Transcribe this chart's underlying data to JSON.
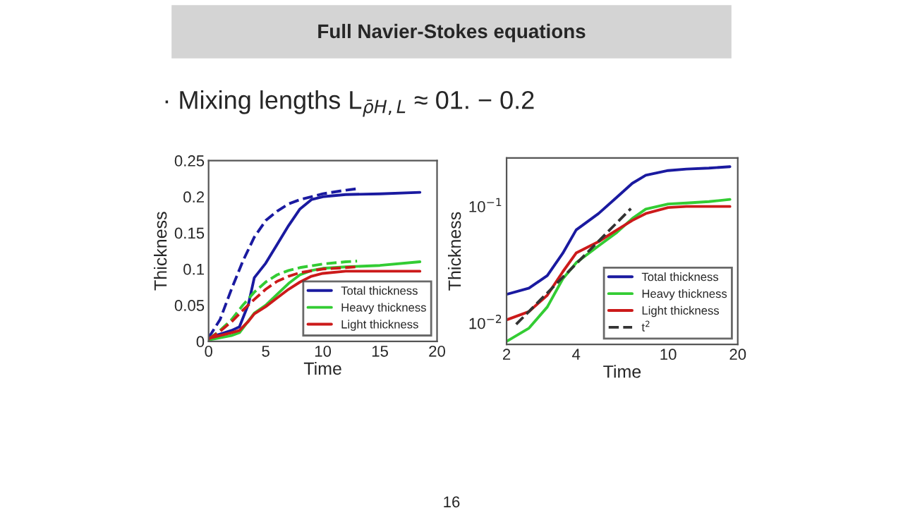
{
  "chart_data": [
    {
      "type": "line",
      "title": "Full Navier-Stokes equations",
      "xlabel": "Time",
      "ylabel": "Thickness",
      "annotations": [
        "· Mixing lengths L$_{ρ̄H,L}$ ≈ 01. − 0.2",
        "16"
      ],
      "xlim": [
        0,
        20
      ],
      "xticks": [
        0,
        5,
        10,
        15,
        20
      ],
      "ylim": [
        0,
        0.25
      ],
      "yticks": [
        0,
        0.05,
        0.1,
        0.15,
        0.2,
        0.25
      ],
      "grid": false,
      "legend": "bottom right",
      "series": [
        {
          "name": "Total thickness",
          "color": "#1a1aa0",
          "line_style": "solid",
          "x": [
            0,
            1,
            2,
            2.7,
            3.5,
            4,
            5,
            6,
            7,
            8,
            9,
            10,
            12,
            15,
            18.5
          ],
          "values": [
            0.005,
            0.01,
            0.015,
            0.02,
            0.052,
            0.088,
            0.108,
            0.134,
            0.16,
            0.183,
            0.196,
            0.2,
            0.203,
            0.204,
            0.206
          ]
        },
        {
          "name": "Heavy thickness",
          "color": "#33cc33",
          "line_style": "solid",
          "x": [
            0,
            2,
            2.7,
            4,
            5,
            6,
            7,
            8,
            9,
            10,
            12,
            15,
            18.5
          ],
          "values": [
            0.002,
            0.008,
            0.012,
            0.039,
            0.05,
            0.065,
            0.08,
            0.092,
            0.098,
            0.101,
            0.103,
            0.105,
            0.11
          ]
        },
        {
          "name": "Light thickness",
          "color": "#cc1a1a",
          "line_style": "solid",
          "x": [
            0,
            1,
            2,
            2.7,
            3.5,
            4,
            5,
            6,
            7,
            8,
            9,
            10,
            12,
            15,
            18.5
          ],
          "values": [
            0.004,
            0.008,
            0.012,
            0.015,
            0.028,
            0.038,
            0.048,
            0.06,
            0.072,
            0.082,
            0.09,
            0.094,
            0.097,
            0.097,
            0.097
          ]
        },
        {
          "color": "#1a1aa0",
          "line_style": "dashed",
          "x": [
            0,
            1,
            2,
            3,
            4,
            5,
            6,
            7,
            8,
            10,
            12,
            13
          ],
          "values": [
            0.005,
            0.03,
            0.072,
            0.111,
            0.144,
            0.167,
            0.18,
            0.19,
            0.196,
            0.204,
            0.209,
            0.211
          ]
        },
        {
          "color": "#33cc33",
          "line_style": "dashed",
          "x": [
            0,
            1,
            2,
            3,
            4,
            5,
            6,
            7,
            8,
            10,
            12,
            13
          ],
          "values": [
            0.003,
            0.015,
            0.03,
            0.05,
            0.068,
            0.082,
            0.092,
            0.098,
            0.102,
            0.107,
            0.11,
            0.111
          ]
        },
        {
          "color": "#cc1a1a",
          "line_style": "dashed",
          "x": [
            0,
            1,
            2,
            3,
            4,
            5,
            6,
            7,
            8,
            10,
            12,
            13
          ],
          "values": [
            0.003,
            0.014,
            0.027,
            0.043,
            0.058,
            0.072,
            0.083,
            0.09,
            0.095,
            0.1,
            0.102,
            0.103
          ]
        }
      ]
    },
    {
      "type": "line",
      "xlabel": "Time",
      "ylabel": "Thickness",
      "log": "xy",
      "xlim": [
        2,
        20
      ],
      "xticks": [
        2,
        4,
        10,
        20
      ],
      "ylim": [
        0.0066,
        0.26
      ],
      "yticks": [
        {
          "value": 0.01,
          "label": "10$^{−2}$"
        },
        {
          "value": 0.1,
          "label": "10$^{−1}$"
        }
      ],
      "grid": false,
      "legend": "bottom right",
      "series": [
        {
          "name": "Total thickness",
          "color": "#1a1aa0",
          "line_style": "solid",
          "x": [
            2,
            2.5,
            3,
            3.5,
            4,
            5,
            6,
            7,
            8,
            10,
            12,
            15,
            18.5
          ],
          "values": [
            0.0177,
            0.02,
            0.0256,
            0.0398,
            0.063,
            0.087,
            0.12,
            0.158,
            0.185,
            0.203,
            0.209,
            0.213,
            0.219
          ]
        },
        {
          "name": "Heavy thickness",
          "color": "#33cc33",
          "line_style": "solid",
          "x": [
            2,
            2.5,
            3,
            3.5,
            4,
            5,
            6,
            7,
            8,
            10,
            12,
            15,
            18.5
          ],
          "values": [
            0.007,
            0.0091,
            0.0138,
            0.024,
            0.033,
            0.046,
            0.06,
            0.079,
            0.095,
            0.105,
            0.107,
            0.11,
            0.115
          ]
        },
        {
          "name": "Light thickness",
          "color": "#cc1a1a",
          "line_style": "solid",
          "x": [
            2,
            2.5,
            3,
            3.5,
            4,
            5,
            6,
            7,
            8,
            10,
            12,
            18.5
          ],
          "values": [
            0.0107,
            0.0126,
            0.0174,
            0.0276,
            0.04,
            0.05,
            0.063,
            0.076,
            0.087,
            0.098,
            0.1,
            0.1
          ]
        },
        {
          "name": "t$^{2}$",
          "color": "#333333",
          "line_style": "dashed",
          "x": [
            2.2,
            6.9
          ],
          "values": [
            0.0098,
            0.096
          ]
        }
      ]
    }
  ]
}
